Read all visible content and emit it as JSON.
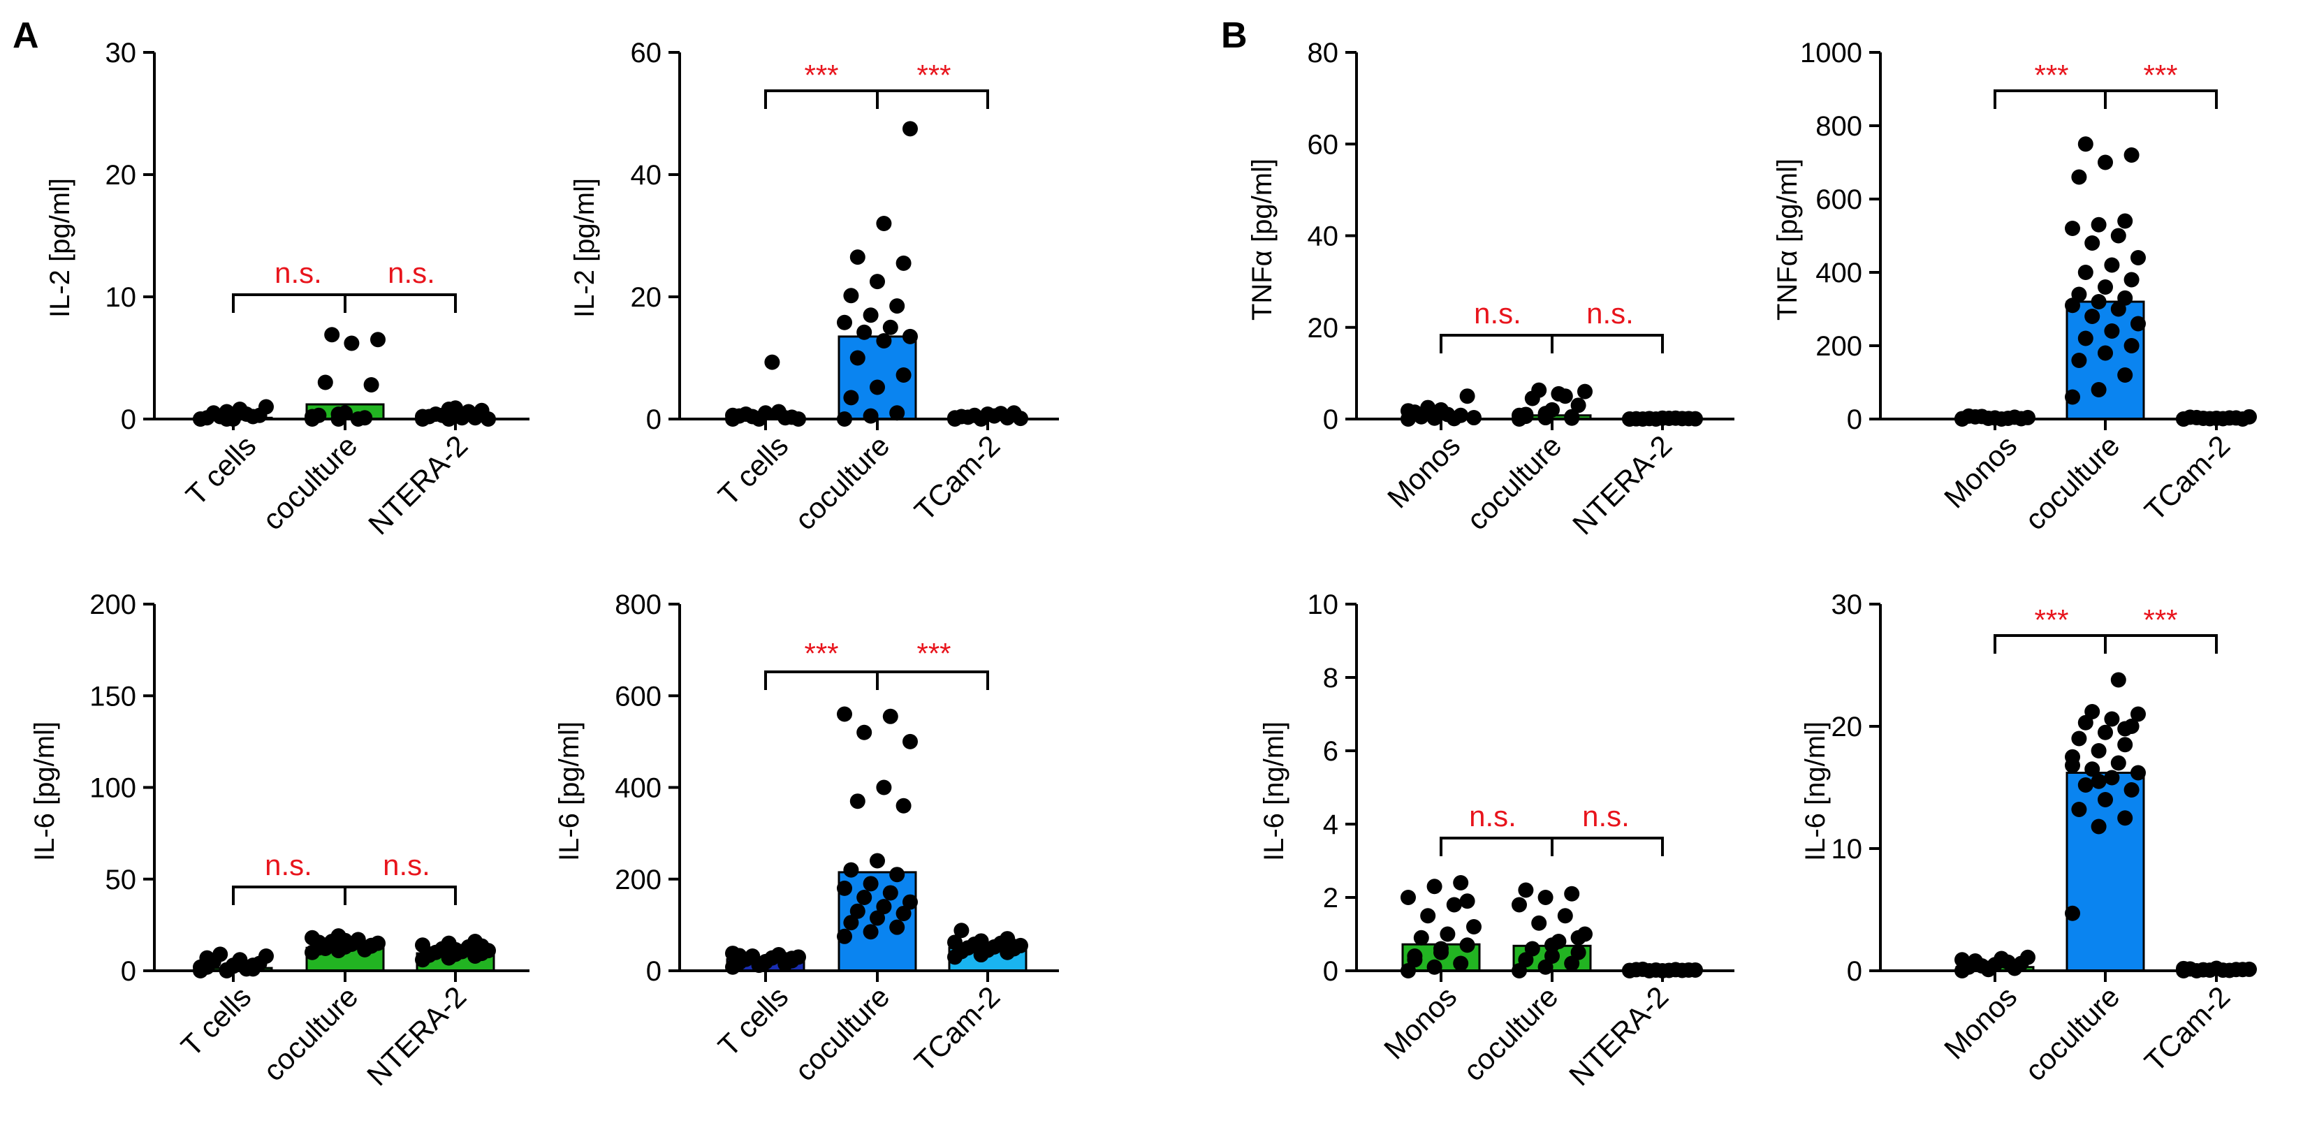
{
  "panels": [
    "A",
    "B"
  ],
  "colors": {
    "green": "#22b422",
    "blue": "#0a84f0",
    "lightblue": "#1ab4f0",
    "darkblue": "#1a2fb4",
    "point": "#000000",
    "sig": "#e8141c"
  },
  "chart_data": [
    {
      "type": "bar",
      "ylabel": "IL-2 [pg/ml]",
      "ylim": [
        0,
        30
      ],
      "yticks": [
        "0",
        "10",
        "20",
        "30"
      ],
      "categories": [
        "T cells",
        "coculture",
        "NTERA-2"
      ],
      "values": [
        0.1,
        1.2,
        0.05
      ],
      "bar_colors": [
        "green",
        "green",
        "green"
      ],
      "points": [
        [
          0,
          0,
          0.2,
          0.1,
          0,
          0.3,
          0.5,
          0.8,
          1.0,
          0.2,
          0.4,
          0,
          0.6
        ],
        [
          0,
          0,
          0.1,
          0.3,
          0.5,
          2.8,
          3.0,
          6.2,
          6.5,
          6.9,
          0,
          0.2,
          0.4
        ],
        [
          0,
          0,
          0.1,
          0.2,
          0.9,
          0.7,
          0.4,
          0.1,
          0,
          0.3,
          0.6,
          0.2,
          0.8
        ]
      ],
      "sig": [
        "n.s.",
        "n.s."
      ]
    },
    {
      "type": "bar",
      "ylabel": "IL-2 [pg/ml]",
      "ylim": [
        0,
        60
      ],
      "yticks": [
        "0",
        "20",
        "40",
        "60"
      ],
      "categories": [
        "T cells",
        "coculture",
        "TCam-2"
      ],
      "values": [
        0.3,
        13.5,
        0.2
      ],
      "bar_colors": [
        "green",
        "blue",
        "lightblue"
      ],
      "points": [
        [
          0,
          0,
          0.2,
          0.5,
          1.0,
          0.3,
          0.8,
          9.3,
          0,
          0.4,
          1.2,
          0.6,
          0.1
        ],
        [
          0,
          0.5,
          1.0,
          3.5,
          5.2,
          7.2,
          10.0,
          12.8,
          13.5,
          14.2,
          15.0,
          15.8,
          17.0,
          18.5,
          20.2,
          22.5,
          25.5,
          26.5,
          32.0,
          47.5
        ],
        [
          0,
          0,
          0.2,
          0.4,
          0.8,
          1.0,
          0.3,
          0.5,
          0.1,
          0.6,
          0.9,
          0.2
        ]
      ],
      "sig": [
        "***",
        "***"
      ]
    },
    {
      "type": "bar",
      "ylabel": "TNFα [pg/ml]",
      "ylim": [
        0,
        80
      ],
      "yticks": [
        "0",
        "20",
        "40",
        "60",
        "80"
      ],
      "categories": [
        "Monos",
        "coculture",
        "NTERA-2"
      ],
      "values": [
        0.5,
        0.8,
        0.05
      ],
      "bar_colors": [
        "green",
        "green",
        "green"
      ],
      "points": [
        [
          0,
          0.2,
          0.8,
          1.5,
          2.0,
          5.0,
          0.5,
          1.0,
          0.3,
          2.5,
          0.1,
          1.8
        ],
        [
          0,
          0.3,
          0.5,
          1.0,
          2.0,
          3.0,
          4.5,
          5.5,
          6.0,
          6.3,
          5.0,
          0.8,
          1.2,
          0.2,
          0.6
        ],
        [
          0,
          0,
          0.1,
          0.05,
          0.2,
          0.1,
          0,
          0.15,
          0.05,
          0.1,
          0.2,
          0
        ]
      ],
      "sig": [
        "n.s.",
        "n.s."
      ]
    },
    {
      "type": "bar",
      "ylabel": "TNFα [pg/ml]",
      "ylim": [
        0,
        1000
      ],
      "yticks": [
        "0",
        "200",
        "400",
        "600",
        "800",
        "1000"
      ],
      "categories": [
        "Monos",
        "coculture",
        "TCam-2"
      ],
      "values": [
        2,
        320,
        1
      ],
      "bar_colors": [
        "green",
        "blue",
        "lightblue"
      ],
      "points": [
        [
          0,
          2,
          5,
          8,
          3,
          1,
          6,
          0,
          4,
          7,
          2,
          1
        ],
        [
          60,
          80,
          120,
          160,
          180,
          200,
          220,
          240,
          260,
          280,
          300,
          310,
          320,
          330,
          340,
          360,
          380,
          400,
          420,
          440,
          480,
          500,
          520,
          530,
          540,
          660,
          700,
          720,
          750
        ],
        [
          0,
          1,
          3,
          5,
          2,
          0,
          4,
          1,
          6,
          2,
          3,
          0
        ]
      ],
      "sig": [
        "***",
        "***"
      ]
    },
    {
      "type": "bar",
      "ylabel": "IL-6 [pg/ml]",
      "ylim": [
        0,
        200
      ],
      "yticks": [
        "0",
        "50",
        "100",
        "150",
        "200"
      ],
      "categories": [
        "T cells",
        "coculture",
        "NTERA-2"
      ],
      "values": [
        1.5,
        12.5,
        9.5
      ],
      "bar_colors": [
        "green",
        "green",
        "green"
      ],
      "points": [
        [
          0,
          0,
          1,
          2,
          3,
          4,
          5,
          6,
          8,
          9,
          1,
          2,
          0.5,
          3,
          7,
          2.5
        ],
        [
          10,
          11,
          12,
          12.5,
          13,
          13.5,
          14,
          14.5,
          15,
          16,
          17,
          18,
          19,
          11.5,
          15.5,
          16.5,
          13.8,
          12.2
        ],
        [
          6,
          7,
          8,
          8.5,
          9,
          9.5,
          10,
          10.5,
          11,
          12,
          13,
          14,
          15,
          16,
          9.2,
          11.5,
          13.5
        ]
      ],
      "sig": [
        "n.s.",
        "n.s."
      ]
    },
    {
      "type": "bar",
      "ylabel": "IL-6 [pg/ml]",
      "ylim": [
        0,
        800
      ],
      "yticks": [
        "0",
        "200",
        "400",
        "600",
        "800"
      ],
      "categories": [
        "T cells",
        "coculture",
        "TCam-2"
      ],
      "values": [
        25,
        215,
        50
      ],
      "bar_colors": [
        "darkblue",
        "blue",
        "lightblue"
      ],
      "points": [
        [
          8,
          12,
          15,
          18,
          20,
          22,
          25,
          28,
          30,
          32,
          35,
          38,
          14,
          24,
          33,
          19,
          27
        ],
        [
          75,
          85,
          95,
          105,
          115,
          125,
          130,
          140,
          150,
          160,
          170,
          180,
          190,
          210,
          220,
          240,
          360,
          370,
          400,
          500,
          520,
          555,
          560
        ],
        [
          30,
          35,
          40,
          42,
          45,
          48,
          50,
          52,
          55,
          58,
          60,
          62,
          65,
          70,
          88,
          46,
          53
        ]
      ],
      "sig": [
        "***",
        "***"
      ]
    },
    {
      "type": "bar",
      "ylabel": "IL-6 [ng/ml]",
      "ylim": [
        0,
        10
      ],
      "yticks": [
        "0",
        "2",
        "4",
        "6",
        "8",
        "10"
      ],
      "categories": [
        "Monos",
        "coculture",
        "NTERA-2"
      ],
      "values": [
        0.72,
        0.68,
        0.02
      ],
      "bar_colors": [
        "green",
        "green",
        "green"
      ],
      "points": [
        [
          0,
          0.1,
          0.2,
          0.3,
          0.5,
          0.7,
          0.9,
          1.0,
          1.2,
          1.5,
          1.8,
          2.0,
          2.3,
          2.4,
          0.4,
          0.6,
          1.9
        ],
        [
          0,
          0.1,
          0.2,
          0.3,
          0.4,
          0.5,
          0.6,
          0.8,
          1.0,
          1.3,
          1.5,
          1.8,
          2.0,
          2.1,
          2.2,
          0.7,
          0.9
        ],
        [
          0,
          0.02,
          0.01,
          0.03,
          0,
          0.02,
          0.04,
          0.01,
          0.02,
          0,
          0.03,
          0.01
        ]
      ],
      "sig": [
        "n.s.",
        "n.s."
      ]
    },
    {
      "type": "bar",
      "ylabel": "IL-6 [ng/ml]",
      "ylim": [
        0,
        30
      ],
      "yticks": [
        "0",
        "10",
        "20",
        "30"
      ],
      "categories": [
        "Monos",
        "coculture",
        "TCam-2"
      ],
      "values": [
        0.3,
        16.2,
        0.1
      ],
      "bar_colors": [
        "green",
        "blue",
        "lightblue"
      ],
      "points": [
        [
          0,
          0.1,
          0.2,
          0.3,
          0.5,
          0.6,
          0.8,
          1.0,
          1.1,
          0.4,
          0.7,
          0.9,
          0.2
        ],
        [
          4.7,
          11.8,
          12.5,
          13.2,
          14.0,
          14.8,
          15.2,
          15.8,
          16.2,
          16.5,
          17.0,
          17.5,
          18.0,
          18.5,
          19.0,
          19.5,
          20.0,
          20.3,
          20.6,
          21.0,
          21.2,
          23.8,
          16.8,
          15.5,
          19.8
        ],
        [
          0,
          0.05,
          0.1,
          0.15,
          0.2,
          0.1,
          0,
          0.05,
          0.12,
          0.08,
          0.03,
          0.18
        ]
      ],
      "sig": [
        "***",
        "***"
      ]
    }
  ]
}
